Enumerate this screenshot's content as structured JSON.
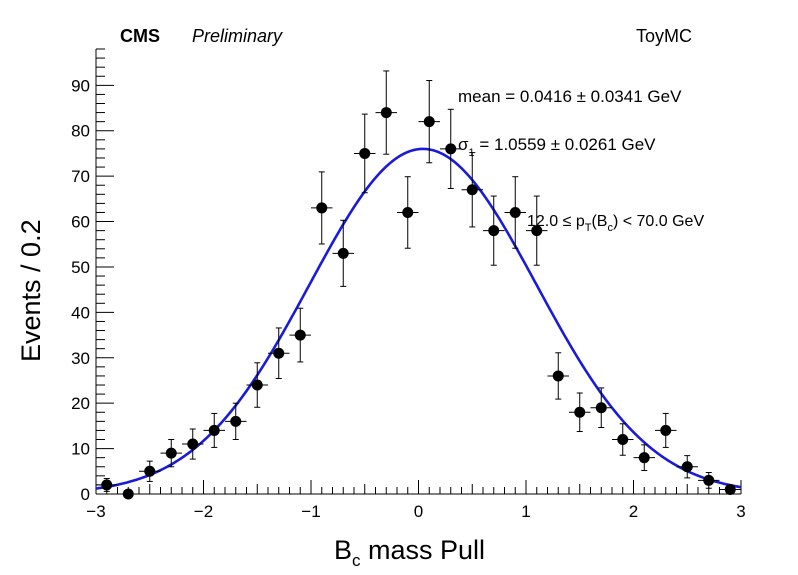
{
  "header": {
    "experiment": "CMS",
    "status": "Preliminary",
    "sample": "ToyMC"
  },
  "annotations": {
    "mean": "mean = 0.0416 ± 0.0341 GeV",
    "sigma_symbol": "σ",
    "sigma_sub": "1",
    "sigma_value": " = 1.0559 ± 0.0261 GeV",
    "pt_low": "12.0 ≤ p",
    "pt_sub_T": "T",
    "pt_mid": "(B",
    "pt_sub_c": "c",
    "pt_high": ") < 70.0 GeV"
  },
  "chart_data": {
    "type": "scatter",
    "xlabel_main": "B",
    "xlabel_sub": "c",
    "xlabel_rest": " mass Pull",
    "ylabel": "Events / 0.2",
    "xlim": [
      -3,
      3
    ],
    "ylim": [
      0,
      98
    ],
    "xticks": [
      -3,
      -2,
      -1,
      0,
      1,
      2,
      3
    ],
    "xtick_labels": [
      "−3",
      "−2",
      "−1",
      "0",
      "1",
      "2",
      "3"
    ],
    "yticks": [
      0,
      10,
      20,
      30,
      40,
      50,
      60,
      70,
      80,
      90
    ],
    "yticks_labels": [
      "0",
      "10",
      "20",
      "30",
      "40",
      "50",
      "60",
      "70",
      "80",
      "90"
    ],
    "series": [
      {
        "kind": "data",
        "x_err": 0.1,
        "points": [
          {
            "x": -2.9,
            "y": 2
          },
          {
            "x": -2.7,
            "y": 0
          },
          {
            "x": -2.5,
            "y": 5
          },
          {
            "x": -2.3,
            "y": 9
          },
          {
            "x": -2.1,
            "y": 11
          },
          {
            "x": -1.9,
            "y": 14
          },
          {
            "x": -1.7,
            "y": 16
          },
          {
            "x": -1.5,
            "y": 24
          },
          {
            "x": -1.3,
            "y": 31
          },
          {
            "x": -1.1,
            "y": 35
          },
          {
            "x": -0.9,
            "y": 63
          },
          {
            "x": -0.7,
            "y": 53
          },
          {
            "x": -0.5,
            "y": 75
          },
          {
            "x": -0.3,
            "y": 84
          },
          {
            "x": -0.1,
            "y": 62
          },
          {
            "x": 0.1,
            "y": 82
          },
          {
            "x": 0.3,
            "y": 76
          },
          {
            "x": 0.5,
            "y": 67
          },
          {
            "x": 0.7,
            "y": 58
          },
          {
            "x": 0.9,
            "y": 62
          },
          {
            "x": 1.1,
            "y": 58
          },
          {
            "x": 1.3,
            "y": 26
          },
          {
            "x": 1.5,
            "y": 18
          },
          {
            "x": 1.7,
            "y": 19
          },
          {
            "x": 1.9,
            "y": 12
          },
          {
            "x": 2.1,
            "y": 8
          },
          {
            "x": 2.3,
            "y": 14
          },
          {
            "x": 2.5,
            "y": 6
          },
          {
            "x": 2.7,
            "y": 3
          },
          {
            "x": 2.9,
            "y": 1
          }
        ]
      },
      {
        "kind": "fit",
        "function": "gaussian",
        "mean": 0.0416,
        "sigma": 1.0559,
        "amplitude": 76,
        "color": "#1a1adb"
      }
    ]
  }
}
